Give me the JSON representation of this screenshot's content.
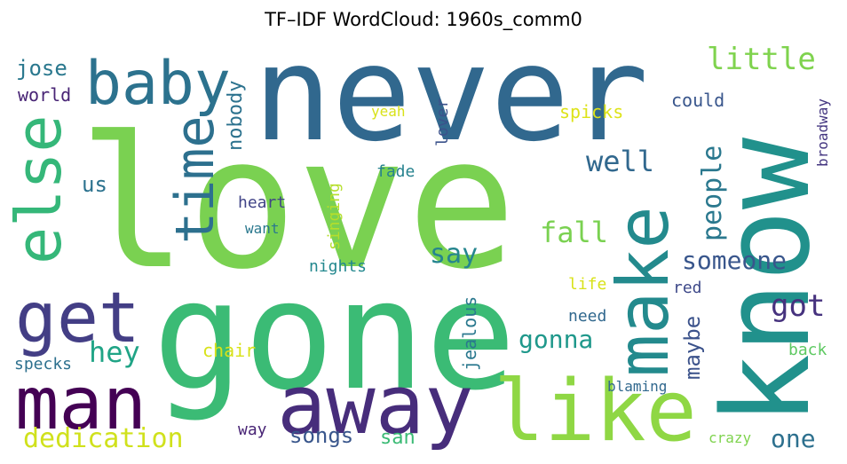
{
  "chart_data": {
    "type": "wordcloud",
    "title": "TF–IDF WordCloud: 1960s_comm0",
    "colormap": "viridis",
    "words": [
      {
        "text": "love",
        "color": "#7ad151"
      },
      {
        "text": "never",
        "color": "#31688e"
      },
      {
        "text": "gone",
        "color": "#3bbb75"
      },
      {
        "text": "know",
        "color": "#21918c"
      },
      {
        "text": "away",
        "color": "#472d7b"
      },
      {
        "text": "like",
        "color": "#8fd744"
      },
      {
        "text": "make",
        "color": "#238a8d"
      },
      {
        "text": "man",
        "color": "#440154"
      },
      {
        "text": "get",
        "color": "#433e85"
      },
      {
        "text": "else",
        "color": "#35b779"
      },
      {
        "text": "baby",
        "color": "#2c728e"
      },
      {
        "text": "time",
        "color": "#2d708e"
      },
      {
        "text": "little",
        "color": "#7fd34e"
      },
      {
        "text": "well",
        "color": "#31688e"
      },
      {
        "text": "people",
        "color": "#2a788e"
      },
      {
        "text": "fall",
        "color": "#7ad151"
      },
      {
        "text": "someone",
        "color": "#39568c"
      },
      {
        "text": "got",
        "color": "#46327e"
      },
      {
        "text": "say",
        "color": "#25858e"
      },
      {
        "text": "gonna",
        "color": "#1f988b"
      },
      {
        "text": "hey",
        "color": "#20a486"
      },
      {
        "text": "dedication",
        "color": "#d0e11c"
      },
      {
        "text": "songs",
        "color": "#39568c"
      },
      {
        "text": "san",
        "color": "#3bbb75"
      },
      {
        "text": "one",
        "color": "#2d708e"
      },
      {
        "text": "maybe",
        "color": "#3b528b"
      },
      {
        "text": "nobody",
        "color": "#2c728e"
      },
      {
        "text": "jose",
        "color": "#2a788e"
      },
      {
        "text": "world",
        "color": "#482475"
      },
      {
        "text": "us",
        "color": "#2c728e"
      },
      {
        "text": "could",
        "color": "#39568c"
      },
      {
        "text": "spicks",
        "color": "#dde318"
      },
      {
        "text": "yeah",
        "color": "#d8e219"
      },
      {
        "text": "lover",
        "color": "#3b528b"
      },
      {
        "text": "fade",
        "color": "#26828e"
      },
      {
        "text": "heart",
        "color": "#414487"
      },
      {
        "text": "want",
        "color": "#2a788e"
      },
      {
        "text": "singing",
        "color": "#b5de2b"
      },
      {
        "text": "nights",
        "color": "#23888e"
      },
      {
        "text": "life",
        "color": "#d8e219"
      },
      {
        "text": "red",
        "color": "#3e4989"
      },
      {
        "text": "jealous",
        "color": "#2a788e"
      },
      {
        "text": "need",
        "color": "#31688e"
      },
      {
        "text": "chair",
        "color": "#d8e219"
      },
      {
        "text": "specks",
        "color": "#2d708e"
      },
      {
        "text": "back",
        "color": "#5ec962"
      },
      {
        "text": "blaming",
        "color": "#31688e"
      },
      {
        "text": "way",
        "color": "#482475"
      },
      {
        "text": "crazy",
        "color": "#7fd34e"
      },
      {
        "text": "broadway",
        "color": "#453781"
      }
    ]
  }
}
